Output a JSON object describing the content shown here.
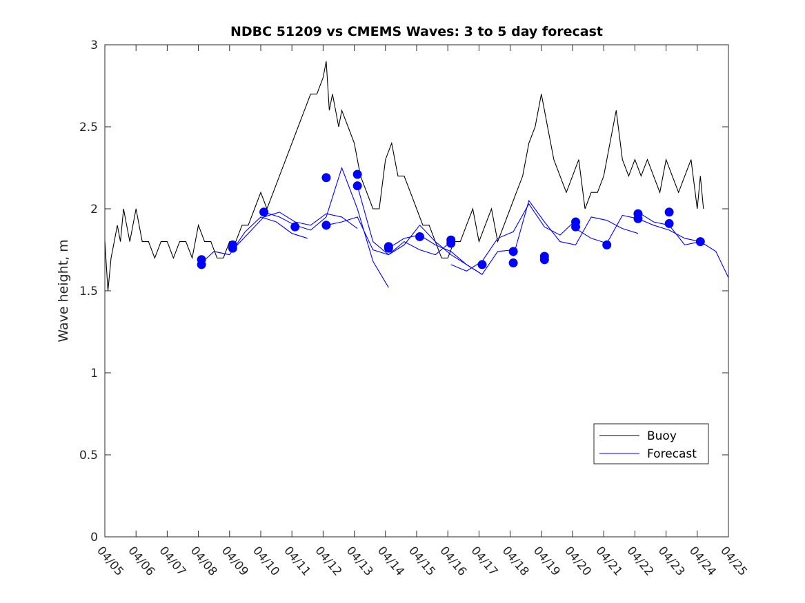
{
  "chart_data": {
    "type": "line",
    "title": "NDBC 51209 vs CMEMS Waves: 3 to 5 day forecast",
    "xlabel": "",
    "ylabel": "Wave height, m",
    "xlim": [
      "04/05",
      "04/25"
    ],
    "ylim": [
      0,
      3
    ],
    "x_ticks": [
      "04/05",
      "04/06",
      "04/07",
      "04/08",
      "04/09",
      "04/10",
      "04/11",
      "04/12",
      "04/13",
      "04/14",
      "04/15",
      "04/16",
      "04/17",
      "04/18",
      "04/19",
      "04/20",
      "04/21",
      "04/22",
      "04/23",
      "04/24",
      "04/25"
    ],
    "y_ticks": [
      "0",
      "0.5",
      "1",
      "1.5",
      "2",
      "2.5",
      "3"
    ],
    "grid": false,
    "legend_position": "lower-right",
    "colors": {
      "buoy": "#000000",
      "forecast": "#0000ff"
    },
    "series": [
      {
        "name": "Buoy",
        "kind": "line",
        "x_days": [
          0.0,
          0.1,
          0.2,
          0.3,
          0.4,
          0.5,
          0.6,
          0.7,
          0.8,
          0.9,
          1.0,
          1.2,
          1.4,
          1.6,
          1.8,
          2.0,
          2.2,
          2.4,
          2.6,
          2.8,
          3.0,
          3.2,
          3.4,
          3.6,
          3.8,
          4.0,
          4.2,
          4.4,
          4.6,
          4.8,
          5.0,
          5.2,
          5.4,
          5.6,
          5.8,
          6.0,
          6.2,
          6.4,
          6.6,
          6.8,
          7.0,
          7.1,
          7.2,
          7.3,
          7.4,
          7.5,
          7.6,
          7.8,
          8.0,
          8.2,
          8.4,
          8.6,
          8.8,
          9.0,
          9.2,
          9.4,
          9.6,
          9.8,
          10.0,
          10.2,
          10.4,
          10.6,
          10.8,
          11.0,
          11.2,
          11.4,
          11.6,
          11.8,
          12.0,
          12.2,
          12.4,
          12.6,
          12.8,
          13.0,
          13.2,
          13.4,
          13.6,
          13.8,
          14.0,
          14.2,
          14.4,
          14.6,
          14.8,
          15.0,
          15.2,
          15.4,
          15.6,
          15.8,
          16.0,
          16.2,
          16.4,
          16.6,
          16.8,
          17.0,
          17.2,
          17.4,
          17.6,
          17.8,
          18.0,
          18.2,
          18.4,
          18.6,
          18.8,
          19.0,
          19.1,
          19.2
        ],
        "values": [
          1.8,
          1.5,
          1.7,
          1.8,
          1.9,
          1.8,
          2.0,
          1.9,
          1.8,
          1.9,
          2.0,
          1.8,
          1.8,
          1.7,
          1.8,
          1.8,
          1.7,
          1.8,
          1.8,
          1.7,
          1.9,
          1.8,
          1.8,
          1.7,
          1.7,
          1.8,
          1.8,
          1.9,
          1.9,
          2.0,
          2.1,
          2.0,
          2.1,
          2.2,
          2.3,
          2.4,
          2.5,
          2.6,
          2.7,
          2.7,
          2.8,
          2.9,
          2.6,
          2.7,
          2.6,
          2.5,
          2.6,
          2.5,
          2.4,
          2.2,
          2.1,
          2.0,
          2.0,
          2.3,
          2.4,
          2.2,
          2.2,
          2.1,
          2.0,
          1.9,
          1.9,
          1.8,
          1.7,
          1.7,
          1.8,
          1.8,
          1.9,
          2.0,
          1.8,
          1.9,
          2.0,
          1.8,
          1.9,
          2.0,
          2.1,
          2.2,
          2.4,
          2.5,
          2.7,
          2.5,
          2.3,
          2.2,
          2.1,
          2.2,
          2.3,
          2.0,
          2.1,
          2.1,
          2.2,
          2.4,
          2.6,
          2.3,
          2.2,
          2.3,
          2.2,
          2.3,
          2.2,
          2.1,
          2.3,
          2.2,
          2.1,
          2.2,
          2.3,
          2.0,
          2.2,
          2.0
        ]
      },
      {
        "name": "Forecast",
        "kind": "lines",
        "runs": [
          {
            "x_days": [
              3.1,
              3.5,
              4.0,
              4.5,
              5.0,
              5.5,
              6.0,
              6.5
            ],
            "values": [
              1.67,
              1.74,
              1.72,
              1.86,
              1.95,
              1.92,
              1.85,
              1.82
            ]
          },
          {
            "x_days": [
              4.1,
              4.6,
              5.1,
              5.6,
              6.1,
              6.6,
              7.1,
              7.6,
              8.1
            ],
            "values": [
              1.75,
              1.85,
              1.95,
              1.98,
              1.92,
              1.9,
              1.97,
              1.95,
              1.88
            ]
          },
          {
            "x_days": [
              5.1,
              5.6,
              6.1,
              6.6,
              7.1,
              7.6,
              8.1,
              8.6,
              9.1
            ],
            "values": [
              1.98,
              1.95,
              1.9,
              1.87,
              1.95,
              2.25,
              2.0,
              1.68,
              1.52
            ]
          },
          {
            "x_days": [
              7.1,
              7.6,
              8.1,
              8.6,
              9.1,
              9.6,
              10.1,
              10.6,
              11.1
            ],
            "values": [
              1.9,
              1.92,
              1.95,
              1.75,
              1.72,
              1.8,
              1.75,
              1.72,
              1.8
            ]
          },
          {
            "x_days": [
              8.1,
              8.6,
              9.1,
              9.6,
              10.1,
              10.6,
              11.1,
              11.6,
              12.1
            ],
            "values": [
              2.14,
              1.8,
              1.72,
              1.78,
              1.9,
              1.8,
              1.72,
              1.66,
              1.6
            ]
          },
          {
            "x_days": [
              9.1,
              9.6,
              10.1,
              10.6,
              11.1,
              11.6,
              12.1,
              12.6,
              13.1
            ],
            "values": [
              1.76,
              1.82,
              1.84,
              1.78,
              1.74,
              1.66,
              1.6,
              1.74,
              1.75
            ]
          },
          {
            "x_days": [
              11.1,
              11.6,
              12.1,
              12.6,
              13.1,
              13.6,
              14.1,
              14.6,
              15.1
            ],
            "values": [
              1.66,
              1.62,
              1.68,
              1.82,
              1.86,
              2.03,
              1.89,
              1.84,
              1.93
            ]
          },
          {
            "x_days": [
              13.1,
              13.6,
              14.1,
              14.6,
              15.1,
              15.6,
              16.1,
              16.6,
              17.1
            ],
            "values": [
              1.71,
              2.05,
              1.92,
              1.8,
              1.78,
              1.95,
              1.93,
              1.88,
              1.85
            ]
          },
          {
            "x_days": [
              15.1,
              15.6,
              16.1,
              16.6,
              17.1,
              17.6,
              18.1,
              18.6,
              19.1
            ],
            "values": [
              1.88,
              1.82,
              1.79,
              1.96,
              1.94,
              1.9,
              1.87,
              1.82,
              1.8
            ]
          },
          {
            "x_days": [
              17.1,
              17.6,
              18.1,
              18.6,
              19.1,
              19.6,
              20.0
            ],
            "values": [
              1.98,
              1.92,
              1.9,
              1.78,
              1.8,
              1.74,
              1.58
            ]
          }
        ],
        "markers_x_days": [
          3.1,
          3.1,
          4.1,
          4.1,
          5.1,
          6.1,
          7.1,
          7.1,
          8.1,
          8.1,
          9.1,
          9.1,
          10.1,
          11.1,
          11.1,
          12.1,
          13.1,
          13.1,
          14.1,
          14.1,
          15.1,
          15.1,
          16.1,
          17.1,
          17.1,
          18.1,
          18.1,
          19.1
        ],
        "markers_values": [
          1.69,
          1.66,
          1.76,
          1.78,
          1.98,
          1.89,
          2.19,
          1.9,
          2.21,
          2.14,
          1.77,
          1.76,
          1.83,
          1.81,
          1.79,
          1.66,
          1.74,
          1.67,
          1.71,
          1.69,
          1.92,
          1.89,
          1.78,
          1.97,
          1.94,
          1.98,
          1.91,
          1.8
        ]
      }
    ]
  }
}
